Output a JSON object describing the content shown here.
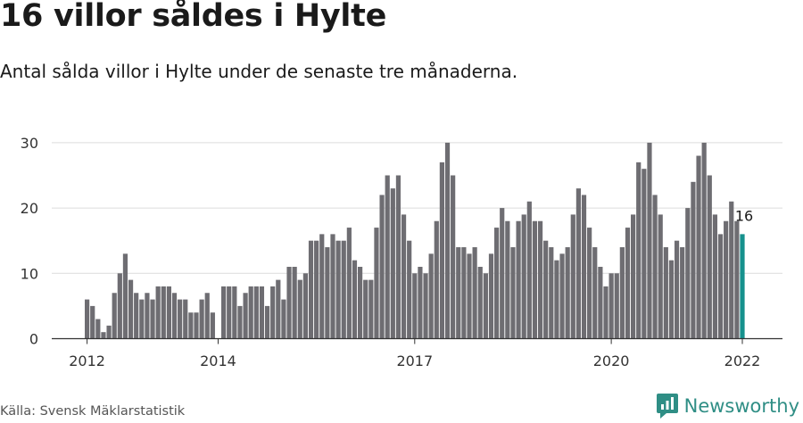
{
  "header": {
    "title": "16 villor såldes i Hylte",
    "subtitle": "Antal sålda villor i Hylte under de senaste tre månaderna."
  },
  "footer": {
    "source": "Källa: Svensk Mäklarstatistik",
    "brand": "Newsworthy"
  },
  "colors": {
    "bar": "#6e6d72",
    "highlight": "#16918d",
    "grid": "#dcdcdc",
    "axis": "#333333",
    "brand": "#2f8e85"
  },
  "chart_data": {
    "type": "bar",
    "title": "16 villor såldes i Hylte",
    "subtitle": "Antal sålda villor i Hylte under de senaste tre månaderna.",
    "xlabel": "",
    "ylabel": "",
    "ylim": [
      0,
      30
    ],
    "yticks": [
      0,
      10,
      20,
      30
    ],
    "grid": true,
    "legend": "none",
    "start": "2012-01",
    "x_tick_labels": [
      {
        "label": "2012",
        "index": 0
      },
      {
        "label": "2014",
        "index": 24
      },
      {
        "label": "2017",
        "index": 60
      },
      {
        "label": "2020",
        "index": 96
      },
      {
        "label": "2022",
        "index": 120
      }
    ],
    "values": [
      6,
      5,
      3,
      1,
      2,
      7,
      10,
      13,
      9,
      7,
      6,
      7,
      6,
      8,
      8,
      8,
      7,
      6,
      6,
      4,
      4,
      6,
      7,
      4,
      0,
      8,
      8,
      8,
      5,
      7,
      8,
      8,
      8,
      5,
      8,
      9,
      6,
      11,
      11,
      9,
      10,
      15,
      15,
      16,
      14,
      16,
      15,
      15,
      17,
      12,
      11,
      9,
      9,
      17,
      22,
      25,
      23,
      25,
      19,
      15,
      10,
      11,
      10,
      13,
      18,
      27,
      30,
      25,
      14,
      14,
      13,
      14,
      11,
      10,
      13,
      17,
      20,
      18,
      14,
      18,
      19,
      21,
      18,
      18,
      15,
      14,
      12,
      13,
      14,
      19,
      23,
      22,
      17,
      14,
      11,
      8,
      10,
      10,
      14,
      17,
      19,
      27,
      26,
      30,
      22,
      19,
      14,
      12,
      15,
      14,
      20,
      24,
      28,
      30,
      25,
      19,
      16,
      18,
      21,
      18,
      16
    ],
    "highlight_index": 120,
    "annotation": "16"
  }
}
